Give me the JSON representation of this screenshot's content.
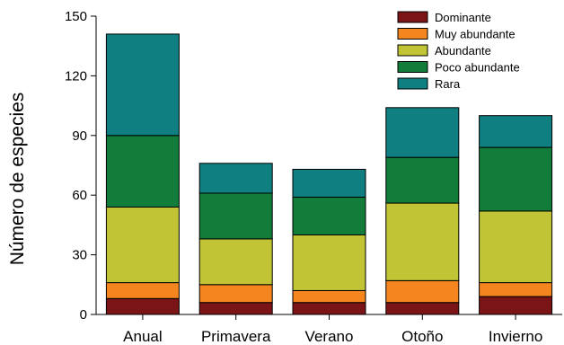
{
  "chart_data": {
    "type": "bar",
    "stacked": true,
    "categories": [
      "Anual",
      "Primavera",
      "Verano",
      "Otoño",
      "Invierno"
    ],
    "ylabel": "Número de especies",
    "xlabel": "",
    "ylim": [
      0,
      150
    ],
    "yticks": [
      0,
      30,
      60,
      90,
      120,
      150
    ],
    "grid": false,
    "legend_position": "top-right",
    "series": [
      {
        "name": "Dominante",
        "color": "#7b1416",
        "values": [
          8,
          6,
          6,
          6,
          9
        ]
      },
      {
        "name": "Muy abundante",
        "color": "#f5861f",
        "values": [
          8,
          9,
          6,
          11,
          7
        ]
      },
      {
        "name": "Abundante",
        "color": "#c0c435",
        "values": [
          38,
          23,
          28,
          39,
          36
        ]
      },
      {
        "name": "Poco abundante",
        "color": "#127c3a",
        "values": [
          36,
          23,
          19,
          23,
          32
        ]
      },
      {
        "name": "Rara",
        "color": "#0f7f82",
        "values": [
          51,
          15,
          14,
          25,
          16
        ]
      }
    ]
  }
}
